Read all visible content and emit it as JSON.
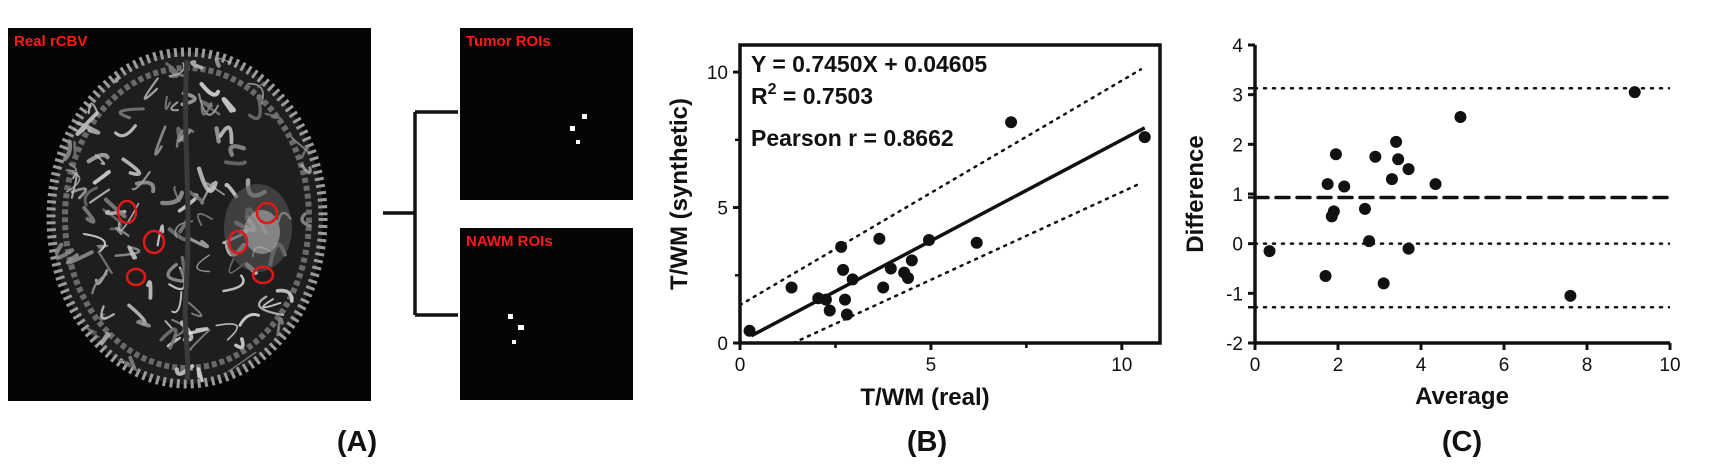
{
  "panel_a": {
    "real_label": "Real rCBV",
    "tumor_label": "Tumor ROIs",
    "nawm_label": "NAWM ROIs",
    "caption": "(A)"
  },
  "panel_b": {
    "caption": "(B)",
    "equation": "Y = 0.7450X + 0.04605",
    "r2_prefix": "R",
    "r2_sup": "2",
    "r2_value": " = 0.7503",
    "pearson": "Pearson r = 0.8662"
  },
  "panel_c": {
    "caption": "(C)"
  },
  "colors": {
    "roi": "#e01818",
    "label": "#ff1a1a",
    "ink": "#111111"
  },
  "chart_data": [
    {
      "type": "scatter",
      "xlabel": "T/WM (real)",
      "ylabel": "T/WM (synthetic)",
      "xlim": [
        0,
        11
      ],
      "ylim": [
        0,
        11
      ],
      "xticks": [
        0,
        5,
        10
      ],
      "yticks": [
        0,
        5,
        10
      ],
      "grid": false,
      "fit": {
        "slope": 0.745,
        "intercept": 0.04605
      },
      "confidence_band": {
        "upper": [
          [
            0,
            1.4
          ],
          [
            10.5,
            10.1
          ]
        ],
        "lower": [
          [
            1.4,
            0.0
          ],
          [
            10.5,
            5.9
          ]
        ]
      },
      "points": [
        [
          0.25,
          0.45
        ],
        [
          1.35,
          2.05
        ],
        [
          2.05,
          1.65
        ],
        [
          2.25,
          1.6
        ],
        [
          2.35,
          1.2
        ],
        [
          2.65,
          3.55
        ],
        [
          2.7,
          2.7
        ],
        [
          2.75,
          1.6
        ],
        [
          2.8,
          1.05
        ],
        [
          2.95,
          2.35
        ],
        [
          3.65,
          3.85
        ],
        [
          3.75,
          2.05
        ],
        [
          3.95,
          2.75
        ],
        [
          4.3,
          2.6
        ],
        [
          4.4,
          2.4
        ],
        [
          4.5,
          3.05
        ],
        [
          4.95,
          3.8
        ],
        [
          6.2,
          3.7
        ],
        [
          7.1,
          8.15
        ],
        [
          10.6,
          7.6
        ]
      ]
    },
    {
      "type": "scatter",
      "xlabel": "Average",
      "ylabel": "Difference",
      "xlim": [
        0,
        10
      ],
      "ylim": [
        -2,
        4
      ],
      "xticks": [
        0,
        2,
        4,
        6,
        8,
        10
      ],
      "yticks": [
        -2,
        -1,
        0,
        1,
        2,
        3,
        4
      ],
      "grid": false,
      "lines": {
        "mean": 0.93,
        "upper_loa": 3.13,
        "lower_loa": -1.28,
        "zero": 0
      },
      "points": [
        [
          0.35,
          -0.15
        ],
        [
          1.7,
          -0.65
        ],
        [
          1.75,
          1.2
        ],
        [
          1.85,
          0.55
        ],
        [
          1.9,
          0.65
        ],
        [
          1.95,
          1.8
        ],
        [
          2.15,
          1.15
        ],
        [
          2.65,
          0.7
        ],
        [
          2.75,
          0.05
        ],
        [
          2.9,
          1.75
        ],
        [
          3.1,
          -0.8
        ],
        [
          3.3,
          1.3
        ],
        [
          3.4,
          2.05
        ],
        [
          3.45,
          1.7
        ],
        [
          3.7,
          1.5
        ],
        [
          3.7,
          -0.1
        ],
        [
          4.35,
          1.2
        ],
        [
          4.95,
          2.55
        ],
        [
          7.6,
          -1.05
        ],
        [
          9.15,
          3.05
        ]
      ]
    }
  ]
}
